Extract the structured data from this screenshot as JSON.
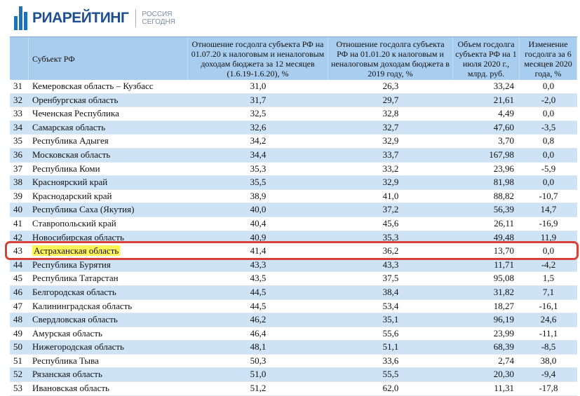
{
  "logo": {
    "brand": "РИАРЕЙТИНГ",
    "sub1": "РОССИЯ",
    "sub2": "СЕГОДНЯ"
  },
  "header": {
    "num": "",
    "name": "Субъект РФ",
    "col_a": "Отношение госдолга субъекта РФ на 01.07.20 к налоговым и неналоговым доходам бюджета за 12 месяцев (1.6.19-1.6.20), %",
    "col_b": "Отношение госдолга субъекта РФ на 01.01.20 к налоговым и неналоговым доходам бюджета в 2019 году, %",
    "col_c": "Объем госдолга субъекта РФ на 1 июля 2020 г., млрд. руб.",
    "col_d": "Изменение госдолга за 6 месяцев 2020 года, %"
  },
  "rows": [
    {
      "num": "31",
      "name": "Кемеровская область – Кузбасс",
      "a": "31,0",
      "b": "26,3",
      "c": "33,24",
      "d": "0,0"
    },
    {
      "num": "32",
      "name": "Оренбургская область",
      "a": "31,7",
      "b": "29,7",
      "c": "21,61",
      "d": "-2,0"
    },
    {
      "num": "33",
      "name": "Чеченская Республика",
      "a": "32,5",
      "b": "32,8",
      "c": "4,49",
      "d": "0,0"
    },
    {
      "num": "34",
      "name": "Самарская область",
      "a": "32,6",
      "b": "32,7",
      "c": "47,60",
      "d": "-3,5"
    },
    {
      "num": "35",
      "name": "Республика Адыгея",
      "a": "34,2",
      "b": "32,9",
      "c": "3,70",
      "d": "0,8"
    },
    {
      "num": "36",
      "name": "Московская область",
      "a": "34,4",
      "b": "33,7",
      "c": "167,98",
      "d": "0,0"
    },
    {
      "num": "37",
      "name": "Республика Коми",
      "a": "35,3",
      "b": "33,2",
      "c": "23,96",
      "d": "-5,9"
    },
    {
      "num": "38",
      "name": "Красноярский край",
      "a": "35,5",
      "b": "32,9",
      "c": "81,98",
      "d": "0,0"
    },
    {
      "num": "39",
      "name": "Краснодарский край",
      "a": "38,9",
      "b": "41,0",
      "c": "88,82",
      "d": "-10,7"
    },
    {
      "num": "40",
      "name": "Республика Саха (Якутия)",
      "a": "40,0",
      "b": "37,2",
      "c": "56,39",
      "d": "14,7"
    },
    {
      "num": "41",
      "name": "Ставропольский край",
      "a": "40,4",
      "b": "45,6",
      "c": "26,11",
      "d": "-16,9"
    },
    {
      "num": "42",
      "name": "Новосибирская область",
      "a": "40,9",
      "b": "35,3",
      "c": "49,48",
      "d": "11,9"
    },
    {
      "num": "43",
      "name": "Астраханская область",
      "a": "41,4",
      "b": "36,2",
      "c": "13,70",
      "d": "0,0"
    },
    {
      "num": "44",
      "name": "Республика Бурятия",
      "a": "43,3",
      "b": "43,3",
      "c": "11,71",
      "d": "-4,2"
    },
    {
      "num": "45",
      "name": "Республика Татарстан",
      "a": "43,5",
      "b": "37,5",
      "c": "95,08",
      "d": "1,5"
    },
    {
      "num": "46",
      "name": "Белгородская область",
      "a": "44,5",
      "b": "38,4",
      "c": "31,82",
      "d": "7,1"
    },
    {
      "num": "47",
      "name": "Калининградская область",
      "a": "44,5",
      "b": "53,4",
      "c": "18,27",
      "d": "-16,1"
    },
    {
      "num": "48",
      "name": "Свердловская область",
      "a": "46,2",
      "b": "35,1",
      "c": "96,19",
      "d": "24,6"
    },
    {
      "num": "49",
      "name": "Амурская область",
      "a": "46,4",
      "b": "55,6",
      "c": "23,99",
      "d": "-11,1"
    },
    {
      "num": "50",
      "name": "Нижегородская область",
      "a": "48,1",
      "b": "51,1",
      "c": "68,39",
      "d": "-8,5"
    },
    {
      "num": "51",
      "name": "Республика Тыва",
      "a": "50,3",
      "b": "33,6",
      "c": "2,74",
      "d": "38,0"
    },
    {
      "num": "52",
      "name": "Рязанская область",
      "a": "51,0",
      "b": "55,5",
      "c": "20,30",
      "d": "-9,4"
    },
    {
      "num": "53",
      "name": "Ивановская область",
      "a": "51,2",
      "b": "62,0",
      "c": "11,31",
      "d": "-17,8"
    }
  ],
  "highlighted_row_index": 12,
  "colors": {
    "header_bg": "#a9cdef",
    "stripe": "#cfe3f6",
    "highlight_border": "#d8403a",
    "highlight_marker": "#fff35a"
  }
}
